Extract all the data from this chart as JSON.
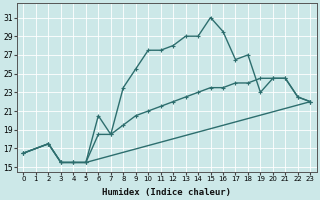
{
  "xlabel": "Humidex (Indice chaleur)",
  "ylabel": "",
  "background_color": "#cce8e8",
  "grid_color": "#ffffff",
  "line_color": "#2d6e6e",
  "xlim": [
    -0.5,
    23.5
  ],
  "ylim": [
    14.5,
    32.5
  ],
  "xticks": [
    0,
    1,
    2,
    3,
    4,
    5,
    6,
    7,
    8,
    9,
    10,
    11,
    12,
    13,
    14,
    15,
    16,
    17,
    18,
    19,
    20,
    21,
    22,
    23
  ],
  "yticks": [
    15,
    17,
    19,
    21,
    23,
    25,
    27,
    29,
    31
  ],
  "curve1_x": [
    0,
    2,
    3,
    4,
    5,
    6,
    7,
    8,
    9,
    10,
    11,
    12,
    13,
    14,
    15,
    16,
    17,
    18,
    19,
    20,
    21,
    22,
    23
  ],
  "curve1_y": [
    16.5,
    17.5,
    15.5,
    15.5,
    15.5,
    20.5,
    18.5,
    23.5,
    25.5,
    27.5,
    27.5,
    28.0,
    29.0,
    29.0,
    31.0,
    29.5,
    26.5,
    27.0,
    23.0,
    24.5,
    24.5,
    22.5,
    22.0
  ],
  "curve2_x": [
    0,
    2,
    3,
    4,
    5,
    6,
    7,
    8,
    9,
    10,
    11,
    12,
    13,
    14,
    15,
    16,
    17,
    18,
    19,
    20,
    21,
    22,
    23
  ],
  "curve2_y": [
    16.5,
    17.5,
    15.5,
    15.5,
    15.5,
    18.5,
    18.5,
    19.5,
    20.5,
    21.0,
    21.5,
    22.0,
    22.5,
    23.0,
    23.5,
    23.5,
    24.0,
    24.0,
    24.5,
    24.5,
    24.5,
    22.5,
    22.0
  ],
  "curve3_x": [
    0,
    2,
    3,
    4,
    5,
    23
  ],
  "curve3_y": [
    16.5,
    17.5,
    15.5,
    15.5,
    15.5,
    22.0
  ],
  "markersize": 2.5,
  "linewidth": 1.0
}
